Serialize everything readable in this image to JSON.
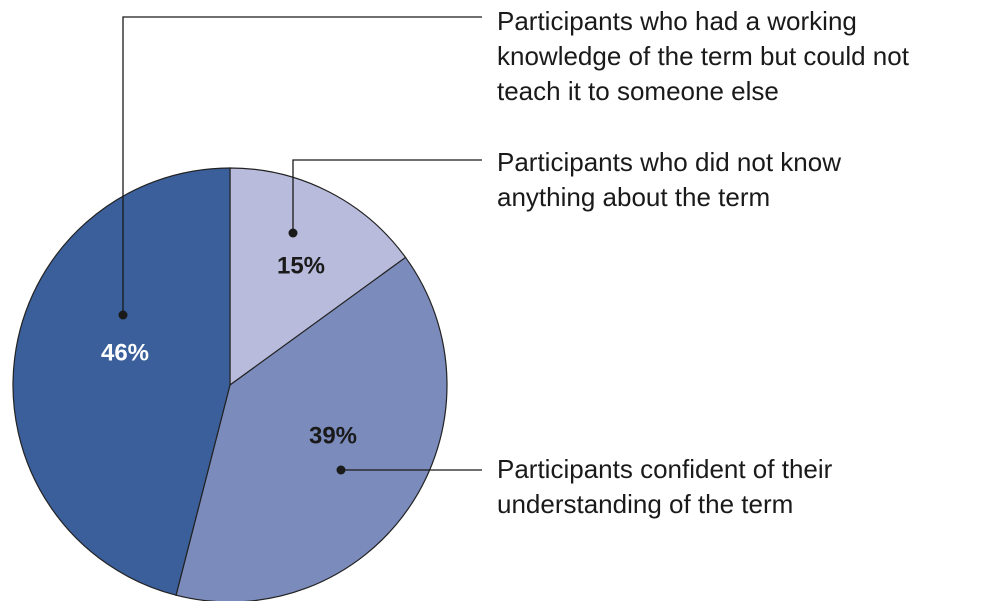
{
  "chart_data": {
    "type": "pie",
    "categories": [
      "Participants who did not know anything about the term",
      "Participants confident of their understanding of the term",
      "Participants who had a working knowledge of the term but could not teach it to someone else"
    ],
    "values": [
      15,
      39,
      46
    ],
    "value_labels": [
      "15%",
      "39%",
      "46%"
    ],
    "colors": [
      "#b8bbdc",
      "#7b8bbb",
      "#3a5f9b"
    ]
  }
}
